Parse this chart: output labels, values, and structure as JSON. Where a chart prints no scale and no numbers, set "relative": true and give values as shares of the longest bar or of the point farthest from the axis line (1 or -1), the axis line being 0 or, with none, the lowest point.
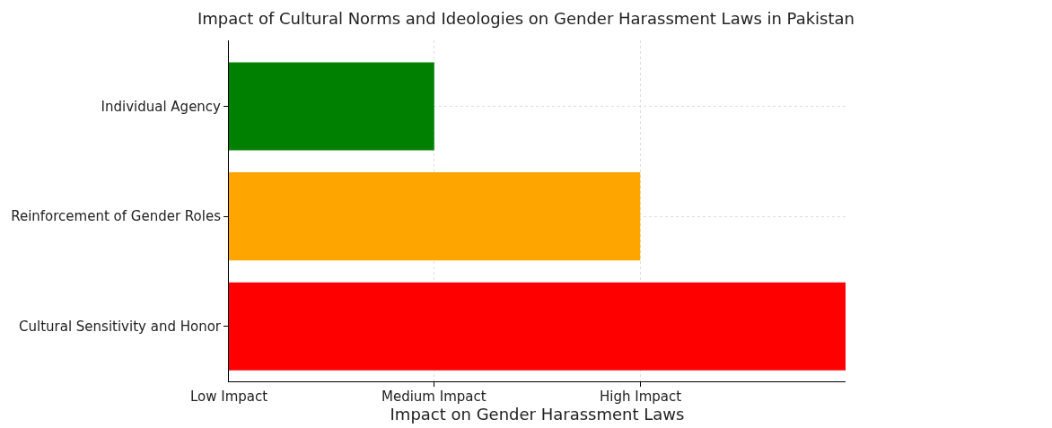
{
  "chart_data": {
    "type": "bar",
    "orientation": "horizontal",
    "relative": true,
    "title": "Impact of Cultural Norms and Ideologies on Gender Harassment Laws in Pakistan",
    "xlabel": "Impact on Gender Harassment Laws",
    "categories": [
      "Individual Agency",
      "Reinforcement of Gender Roles",
      "Cultural Sensitivity and Honor"
    ],
    "values": [
      0.333,
      0.667,
      1
    ],
    "colors": [
      "#008000",
      "#ffa500",
      "#ff0000"
    ],
    "annotations": [
      "Low Impact",
      {
        "text": "Medium Impact",
        "x": 0.333
      },
      {
        "text": "High Impact",
        "x": 0.667
      }
    ],
    "grid": true
  }
}
